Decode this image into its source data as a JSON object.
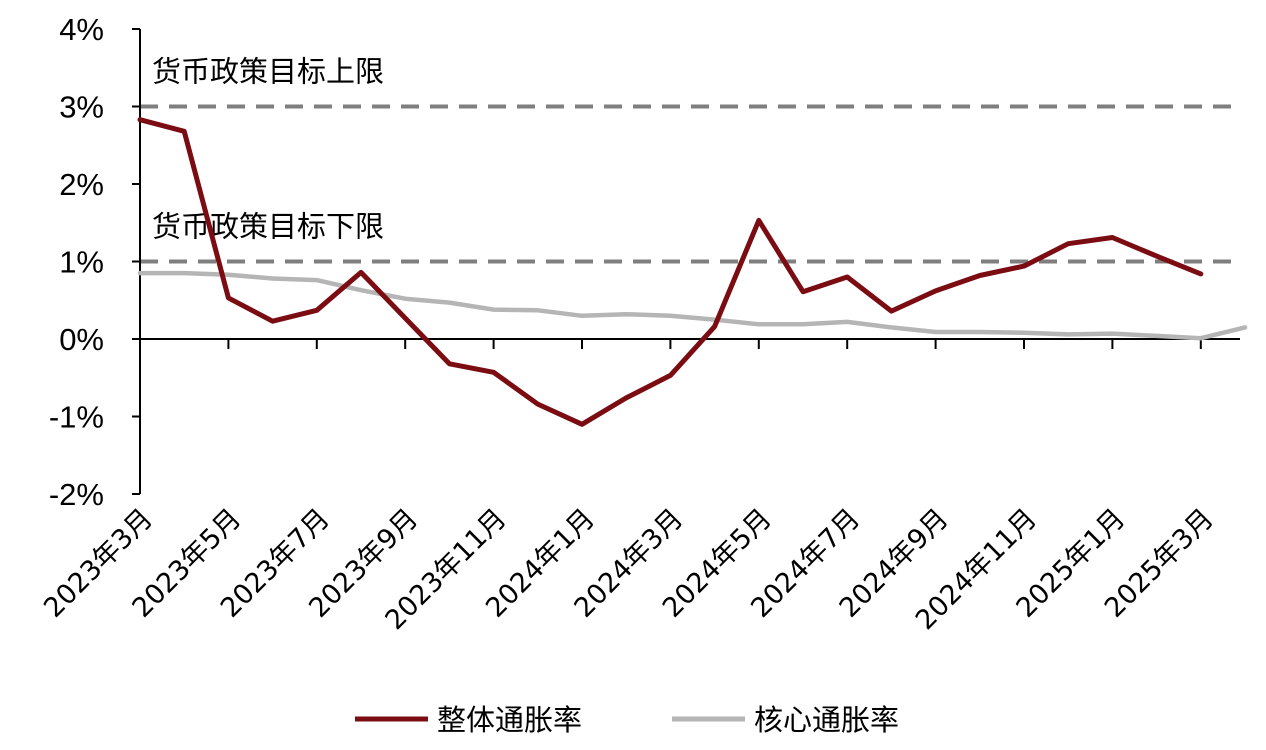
{
  "colors": {
    "headline": "#7b0c12",
    "core": "#b5b5b5",
    "reference": "#7f7f7f",
    "axis": "#000000"
  },
  "chart_data": {
    "type": "line",
    "x": [
      "2023年3月",
      "2023年4月",
      "2023年5月",
      "2023年6月",
      "2023年7月",
      "2023年8月",
      "2023年9月",
      "2023年10月",
      "2023年11月",
      "2023年12月",
      "2024年1月",
      "2024年2月",
      "2024年3月",
      "2024年4月",
      "2024年5月",
      "2024年6月",
      "2024年7月",
      "2024年8月",
      "2024年9月",
      "2024年10月",
      "2024年11月",
      "2024年12月",
      "2025年1月",
      "2025年2月",
      "2025年3月",
      "2025年4月"
    ],
    "x_tick_labels": [
      "2023年3月",
      "2023年5月",
      "2023年7月",
      "2023年9月",
      "2023年11月",
      "2024年1月",
      "2024年3月",
      "2024年5月",
      "2024年7月",
      "2024年9月",
      "2024年11月",
      "2025年1月",
      "2025年3月"
    ],
    "series": [
      {
        "name": "整体通胀率",
        "values": [
          2.83,
          2.68,
          0.53,
          0.23,
          0.37,
          0.86,
          0.27,
          -0.32,
          -0.43,
          -0.84,
          -1.1,
          -0.76,
          -0.47,
          0.16,
          1.53,
          0.61,
          0.8,
          0.36,
          0.62,
          0.82,
          0.94,
          1.23,
          1.31,
          1.07,
          0.84,
          null
        ]
      },
      {
        "name": "核心通胀率",
        "values": [
          0.85,
          0.85,
          0.83,
          0.78,
          0.76,
          0.63,
          0.52,
          0.47,
          0.38,
          0.37,
          0.3,
          0.32,
          0.3,
          0.25,
          0.19,
          0.19,
          0.22,
          0.15,
          0.09,
          0.09,
          0.08,
          0.06,
          0.07,
          0.04,
          0.01,
          0.15
        ]
      }
    ],
    "ylim": [
      -2,
      4
    ],
    "yticks": [
      -2,
      -1,
      0,
      1,
      2,
      3,
      4
    ],
    "ytick_labels": [
      "-2%",
      "-1%",
      "0%",
      "1%",
      "2%",
      "3%",
      "4%"
    ],
    "reference_lines": [
      {
        "value": 3,
        "label": "货币政策目标上限"
      },
      {
        "value": 1,
        "label": "货币政策目标下限"
      }
    ],
    "legend_position": "bottom",
    "grid": false
  }
}
